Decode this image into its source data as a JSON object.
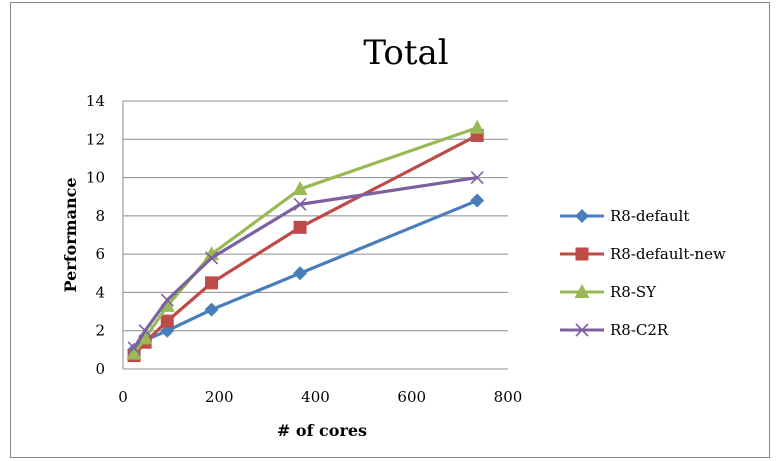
{
  "chart_data": {
    "type": "line",
    "title": "Total",
    "xlabel": "# of cores",
    "ylabel": "Performance",
    "xlim": [
      0,
      800
    ],
    "ylim": [
      0,
      14
    ],
    "xticks": [
      "0",
      "200",
      "400",
      "600",
      "800"
    ],
    "yticks": [
      "0",
      "2",
      "4",
      "6",
      "8",
      "10",
      "12",
      "14"
    ],
    "grid": "horizontal",
    "legend": "right",
    "series": [
      {
        "name": "R8-default",
        "color": "#4a7ebb",
        "marker": "diamond",
        "x": [
          23,
          46,
          92,
          184,
          368,
          736
        ],
        "y": [
          1.0,
          1.5,
          2.0,
          3.1,
          5.0,
          8.8
        ]
      },
      {
        "name": "R8-default-new",
        "color": "#be4b48",
        "marker": "square",
        "x": [
          23,
          46,
          92,
          184,
          368,
          736
        ],
        "y": [
          0.7,
          1.4,
          2.5,
          4.5,
          7.4,
          12.2
        ]
      },
      {
        "name": "R8-SY",
        "color": "#98b954",
        "marker": "triangle",
        "x": [
          23,
          46,
          92,
          184,
          368,
          736
        ],
        "y": [
          0.8,
          1.6,
          3.3,
          6.0,
          9.4,
          12.6
        ]
      },
      {
        "name": "R8-C2R",
        "color": "#7d60a0",
        "marker": "x",
        "x": [
          23,
          46,
          92,
          184,
          368,
          736
        ],
        "y": [
          1.1,
          2.0,
          3.6,
          5.8,
          8.6,
          10.0
        ]
      }
    ]
  }
}
